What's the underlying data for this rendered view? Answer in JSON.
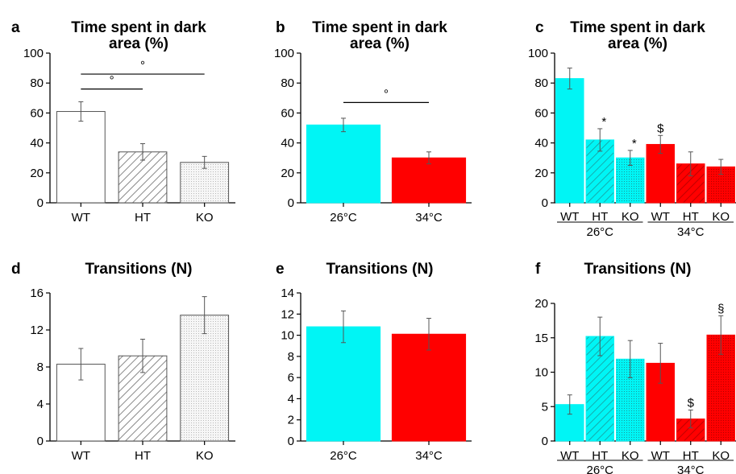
{
  "chart_data": [
    {
      "panel": "a",
      "type": "bar",
      "title": [
        "Time spent in dark",
        "area (%)"
      ],
      "categories": [
        "WT",
        "HT",
        "KO"
      ],
      "values": [
        61,
        34,
        27
      ],
      "errors": [
        6.5,
        5.5,
        4
      ],
      "fills": [
        "white",
        "hatch",
        "dots"
      ],
      "ylim": [
        0,
        100
      ],
      "yticks": [
        0,
        20,
        40,
        60,
        80,
        100
      ],
      "annotations": [
        {
          "type": "bracket",
          "from": 0,
          "to": 1,
          "y": 76,
          "label": "°"
        },
        {
          "type": "bracket",
          "from": 0,
          "to": 2,
          "y": 86,
          "label": "°"
        }
      ]
    },
    {
      "panel": "b",
      "type": "bar",
      "title": [
        "Time spent in dark",
        "area (%)"
      ],
      "categories": [
        "26°C",
        "34°C"
      ],
      "values": [
        52,
        30
      ],
      "errors": [
        4.5,
        4
      ],
      "fills": [
        "cyan",
        "red"
      ],
      "ylim": [
        0,
        100
      ],
      "yticks": [
        0,
        20,
        40,
        60,
        80,
        100
      ],
      "annotations": [
        {
          "type": "bracket",
          "from": 0,
          "to": 1,
          "y": 67,
          "label": "°"
        }
      ]
    },
    {
      "panel": "c",
      "type": "bar",
      "title": [
        "Time spent in dark",
        "area (%)"
      ],
      "categories": [
        "WT",
        "HT",
        "KO",
        "WT",
        "HT",
        "KO"
      ],
      "groups": [
        {
          "label": "26°C",
          "from": 0,
          "to": 2
        },
        {
          "label": "34°C",
          "from": 3,
          "to": 5
        }
      ],
      "values": [
        83,
        42,
        30,
        39,
        26,
        24
      ],
      "errors": [
        7,
        7.5,
        5,
        6,
        8,
        5
      ],
      "fills": [
        "cyan",
        "cyan-hatch",
        "cyan-dots",
        "red",
        "red-hatch",
        "red-dots"
      ],
      "ylim": [
        0,
        100
      ],
      "yticks": [
        0,
        20,
        40,
        60,
        80,
        100
      ],
      "annotations": [
        {
          "type": "mark",
          "bar": 1,
          "label": "*"
        },
        {
          "type": "mark",
          "bar": 2,
          "label": "*"
        },
        {
          "type": "mark",
          "bar": 3,
          "label": "$"
        }
      ]
    },
    {
      "panel": "d",
      "type": "bar",
      "title": [
        "Transitions (N)"
      ],
      "categories": [
        "WT",
        "HT",
        "KO"
      ],
      "values": [
        8.3,
        9.2,
        13.6
      ],
      "errors": [
        1.7,
        1.8,
        2.0
      ],
      "fills": [
        "white",
        "hatch",
        "dots"
      ],
      "ylim": [
        0,
        16
      ],
      "yticks": [
        0,
        4,
        8,
        12,
        16
      ],
      "annotations": []
    },
    {
      "panel": "e",
      "type": "bar",
      "title": [
        "Transitions (N)"
      ],
      "categories": [
        "26°C",
        "34°C"
      ],
      "values": [
        10.8,
        10.1
      ],
      "errors": [
        1.5,
        1.5
      ],
      "fills": [
        "cyan",
        "red"
      ],
      "ylim": [
        0,
        14
      ],
      "yticks": [
        0,
        2,
        4,
        6,
        8,
        10,
        12,
        14
      ],
      "annotations": []
    },
    {
      "panel": "f",
      "type": "bar",
      "title": [
        "Transitions (N)"
      ],
      "categories": [
        "WT",
        "HT",
        "KO",
        "WT",
        "HT",
        "KO"
      ],
      "groups": [
        {
          "label": "26°C",
          "from": 0,
          "to": 2
        },
        {
          "label": "34°C",
          "from": 3,
          "to": 5
        }
      ],
      "values": [
        5.3,
        15.2,
        11.9,
        11.3,
        3.2,
        15.4
      ],
      "errors": [
        1.4,
        2.8,
        2.7,
        2.9,
        1.3,
        2.8
      ],
      "fills": [
        "cyan",
        "cyan-hatch",
        "cyan-dots",
        "red",
        "red-hatch",
        "red-dots"
      ],
      "ylim": [
        0,
        20
      ],
      "yticks": [
        0,
        5,
        10,
        15,
        20
      ],
      "annotations": [
        {
          "type": "mark",
          "bar": 4,
          "label": "$"
        },
        {
          "type": "mark",
          "bar": 5,
          "label": "§"
        }
      ]
    }
  ],
  "colors": {
    "cyan": "#00f5f5",
    "red": "#ff0000",
    "white": "#ffffff",
    "hatch": "#9a9a9a",
    "dots": "#c9c9c9",
    "ink": "#000000",
    "dark-red": "#b00000",
    "dark-cyan": "#1a9a9a"
  }
}
